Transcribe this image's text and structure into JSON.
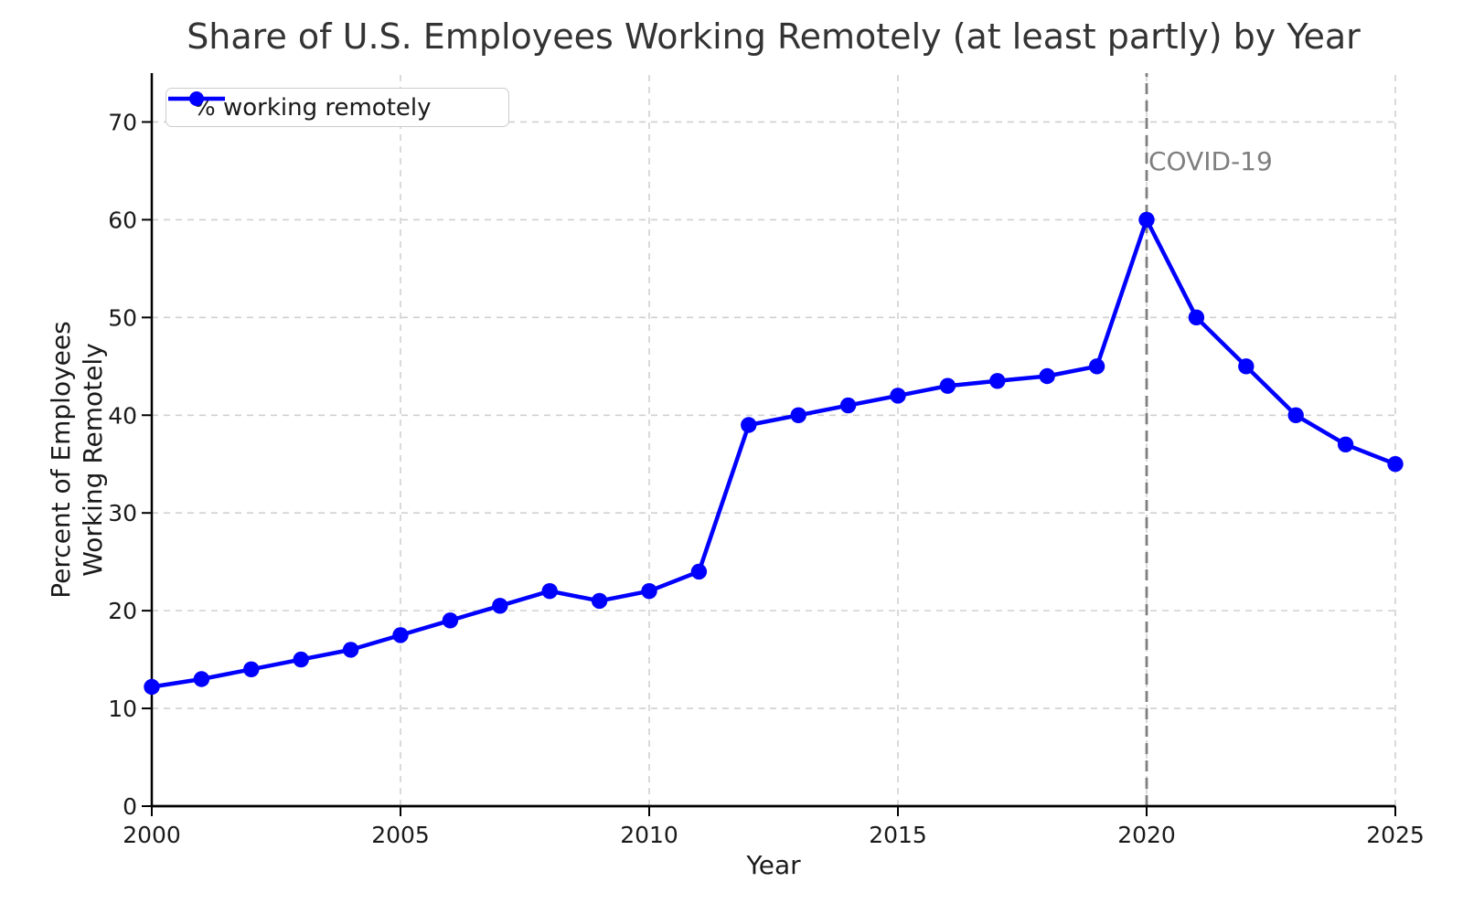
{
  "title": "Share of U.S. Employees Working Remotely (at least partly) by Year",
  "colors": {
    "line": "#0000ff",
    "grid": "#d0d0d0",
    "spine": "#000000",
    "tick_label": "#1a1a1a",
    "title": "#333333",
    "annotation": "#7f7f7f",
    "legend_border": "#cccccc"
  },
  "chart_data": {
    "type": "line",
    "title": "Share of U.S. Employees Working Remotely (at least partly) by Year",
    "xlabel": "Year",
    "ylabel": "Percent of Employees Working Remotely",
    "ylabel_lines": [
      "Percent of Employees",
      "Working Remotely"
    ],
    "x": [
      2000,
      2001,
      2002,
      2003,
      2004,
      2005,
      2006,
      2007,
      2008,
      2009,
      2010,
      2011,
      2012,
      2013,
      2014,
      2015,
      2016,
      2017,
      2018,
      2019,
      2020,
      2021,
      2022,
      2023,
      2024,
      2025
    ],
    "series": [
      {
        "name": "% working remotely",
        "color": "#0000ff",
        "marker": "circle",
        "values": [
          12.2,
          13,
          14,
          15,
          16,
          17.5,
          19,
          20.5,
          22,
          21,
          22,
          24,
          39,
          40,
          41,
          42,
          43,
          43.5,
          44,
          45,
          60,
          50,
          45,
          40,
          37,
          35
        ]
      }
    ],
    "xlim": [
      2000,
      2025
    ],
    "ylim": [
      0,
      75
    ],
    "xticks": [
      2000,
      2005,
      2010,
      2015,
      2020,
      2025
    ],
    "yticks": [
      0,
      10,
      20,
      30,
      40,
      50,
      60,
      70
    ],
    "grid": true,
    "grid_style": "dashed",
    "legend_position": "upper-left",
    "annotation": {
      "type": "vline",
      "x": 2020,
      "label": "COVID-19",
      "color": "#7f7f7f"
    }
  }
}
